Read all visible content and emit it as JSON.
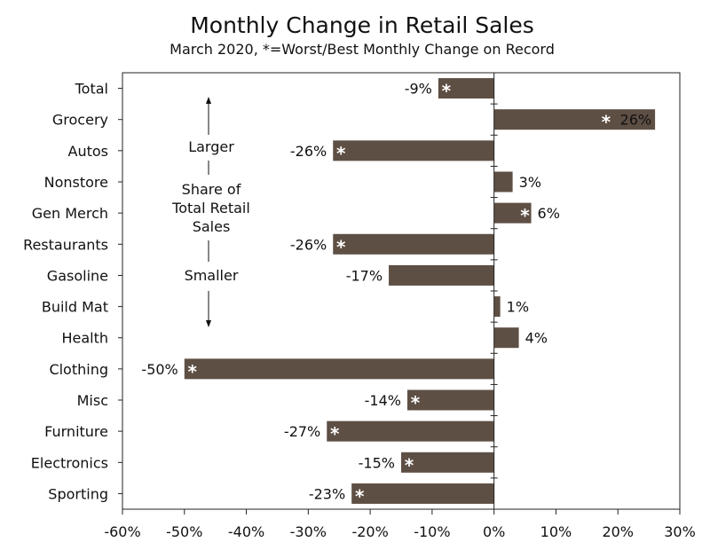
{
  "chart_data": {
    "type": "bar",
    "orientation": "horizontal",
    "title": "Monthly Change in Retail Sales",
    "subtitle": "March 2020, *=Worst/Best Monthly Change on Record",
    "xlabel": "",
    "ylabel": "",
    "xlim": [
      -60,
      30
    ],
    "x_ticks": [
      -60,
      -50,
      -40,
      -30,
      -20,
      -10,
      0,
      10,
      20,
      30
    ],
    "tick_suffix": "%",
    "grid": false,
    "bar_color": "#5e4f44",
    "star_color": "#ffffff",
    "categories": [
      "Total",
      "Grocery",
      "Autos",
      "Nonstore",
      "Gen Merch",
      "Restaurants",
      "Gasoline",
      "Build Mat",
      "Health",
      "Clothing",
      "Misc",
      "Furniture",
      "Electronics",
      "Sporting"
    ],
    "values": [
      -9,
      26,
      -26,
      3,
      6,
      -26,
      -17,
      1,
      4,
      -50,
      -14,
      -27,
      -15,
      -23
    ],
    "data_labels": [
      "-9%",
      "26%",
      "-26%",
      "3%",
      "6%",
      "-26%",
      "-17%",
      "1%",
      "4%",
      "-50%",
      "-14%",
      "-27%",
      "-15%",
      "-23%"
    ],
    "record": [
      true,
      true,
      true,
      false,
      true,
      true,
      false,
      false,
      false,
      true,
      true,
      true,
      true,
      true
    ],
    "star_symbol": "*",
    "annotation": {
      "top": "Larger",
      "middle": [
        "Share of",
        "Total Retail",
        "Sales"
      ],
      "bottom": "Smaller"
    }
  }
}
